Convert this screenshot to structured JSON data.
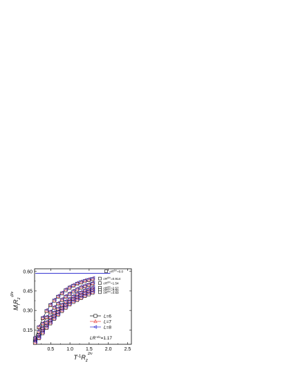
{
  "chart_data": {
    "type": "line",
    "xlabel": {
      "base": "T",
      "sup1": "-1",
      "mid": "R",
      "sub": "z",
      "sup2": "2/ν",
      "sub2": "z"
    },
    "ylabel": {
      "base": "M",
      "sub1": "I",
      "mid": "R",
      "sub2": "z",
      "sup": "-β/ν",
      "sub3": "z"
    },
    "xlim": [
      0.08,
      2.6
    ],
    "ylim": [
      0.04,
      0.62
    ],
    "x_ticks": [
      "0.5",
      "1.0",
      "1.5",
      "2.0",
      "2.5"
    ],
    "x_tick_values": [
      0.5,
      1.0,
      1.5,
      2.0,
      2.5
    ],
    "y_ticks": [
      "0.15",
      "0.30",
      "0.45",
      "0.60"
    ],
    "y_tick_values": [
      0.15,
      0.3,
      0.45,
      0.6
    ],
    "colors": {
      "L6": "#000000",
      "L7": "#e8413c",
      "L8": "#2a2ad0"
    },
    "legend": [
      {
        "label_italic": "L",
        "label_rest": "=6",
        "marker": "square",
        "color": "#000000"
      },
      {
        "label_italic": "L",
        "label_rest": "=7",
        "marker": "triangle-up",
        "color": "#e8413c"
      },
      {
        "label_italic": "L",
        "label_rest": "=8",
        "marker": "triangle-left",
        "color": "#2a2ad0"
      }
    ],
    "annotation": {
      "italic": "LR",
      "sub": "z",
      "sup": "-ν/ν",
      "sub2": "z",
      "rest": "=1.17"
    },
    "curve_labels": [
      {
        "prefix": "cR",
        "sup": "Δ/ν",
        "value": "=0.0"
      },
      {
        "prefix": "cR",
        "sup": "Δ/ν",
        "value": "=0.914"
      },
      {
        "prefix": "cR",
        "sup": "Δ/ν",
        "value": "=1.54"
      },
      {
        "prefix": "cR",
        "sup": "Δ/ν",
        "value": "=2.57"
      },
      {
        "prefix": "cR",
        "sup": "Δ/ν",
        "value": "=3.60"
      },
      {
        "prefix": "cR",
        "sup": "Δ/ν",
        "value": "=4.63"
      }
    ],
    "series": [
      {
        "name": "cR=0.0",
        "x": [
          0.1,
          2.05
        ],
        "y": [
          0.585,
          0.585
        ]
      },
      {
        "name": "cR=0.914",
        "x": [
          0.1,
          0.2,
          0.3,
          0.4,
          0.5,
          0.6,
          0.7,
          0.8,
          0.9,
          1.0,
          1.1,
          1.2,
          1.3,
          1.4,
          1.5,
          1.6
        ],
        "y": [
          0.09,
          0.175,
          0.245,
          0.3,
          0.345,
          0.38,
          0.41,
          0.435,
          0.46,
          0.48,
          0.495,
          0.51,
          0.52,
          0.53,
          0.538,
          0.545
        ]
      },
      {
        "name": "cR=1.54",
        "x": [
          0.1,
          0.2,
          0.3,
          0.4,
          0.5,
          0.6,
          0.7,
          0.8,
          0.9,
          1.0,
          1.1,
          1.2,
          1.3,
          1.4,
          1.5,
          1.6
        ],
        "y": [
          0.075,
          0.14,
          0.2,
          0.25,
          0.29,
          0.325,
          0.355,
          0.385,
          0.41,
          0.43,
          0.45,
          0.465,
          0.48,
          0.49,
          0.5,
          0.51
        ]
      },
      {
        "name": "cR=2.57",
        "x": [
          0.1,
          0.2,
          0.3,
          0.4,
          0.5,
          0.6,
          0.7,
          0.8,
          0.9,
          1.0,
          1.1,
          1.2,
          1.3,
          1.4,
          1.5,
          1.6
        ],
        "y": [
          0.065,
          0.115,
          0.165,
          0.21,
          0.25,
          0.285,
          0.315,
          0.345,
          0.37,
          0.39,
          0.41,
          0.43,
          0.44,
          0.455,
          0.465,
          0.475
        ]
      },
      {
        "name": "cR=3.60",
        "x": [
          0.1,
          0.2,
          0.3,
          0.4,
          0.5,
          0.6,
          0.7,
          0.8,
          0.9,
          1.0,
          1.1,
          1.2,
          1.3,
          1.4,
          1.5,
          1.6
        ],
        "y": [
          0.06,
          0.1,
          0.145,
          0.185,
          0.225,
          0.26,
          0.29,
          0.32,
          0.345,
          0.37,
          0.39,
          0.405,
          0.42,
          0.435,
          0.448,
          0.458
        ]
      },
      {
        "name": "cR=4.63",
        "x": [
          0.1,
          0.2,
          0.3,
          0.4,
          0.5,
          0.6,
          0.7,
          0.8,
          0.9,
          1.0,
          1.1,
          1.2,
          1.3,
          1.4,
          1.5,
          1.6
        ],
        "y": [
          0.055,
          0.09,
          0.13,
          0.17,
          0.205,
          0.24,
          0.27,
          0.3,
          0.325,
          0.35,
          0.37,
          0.385,
          0.4,
          0.415,
          0.428,
          0.44
        ]
      }
    ]
  }
}
